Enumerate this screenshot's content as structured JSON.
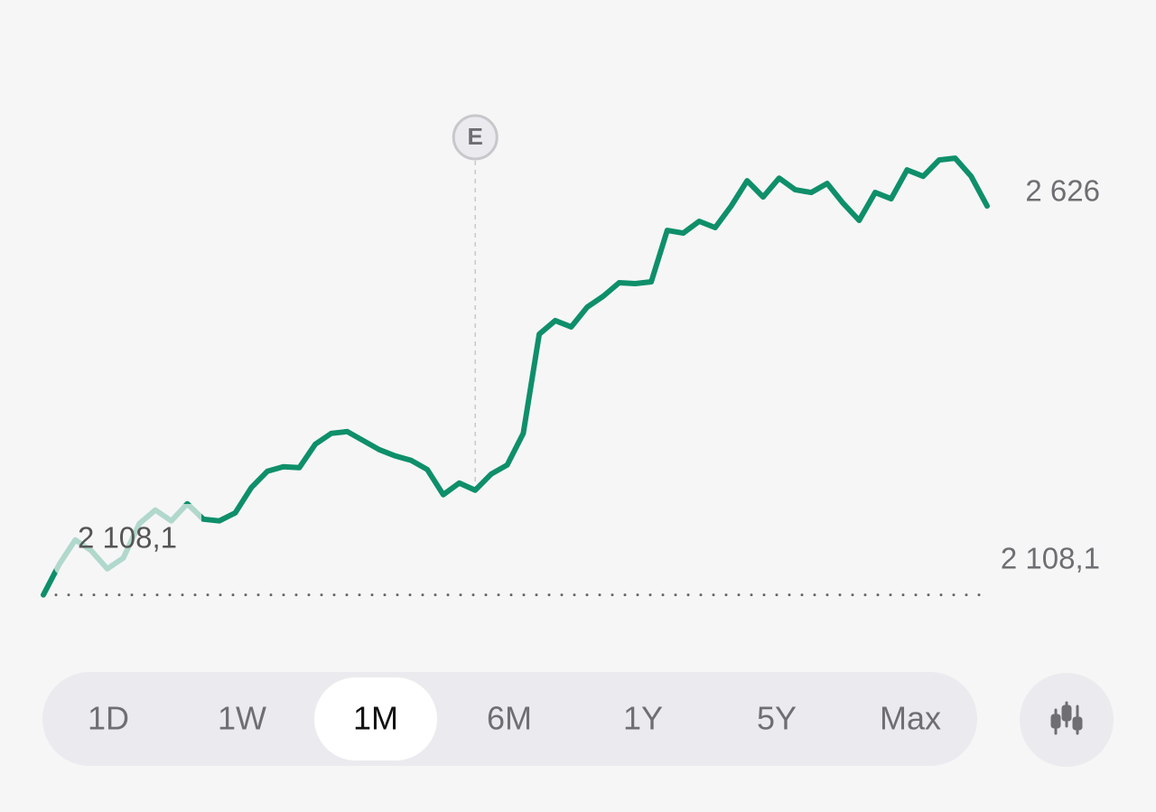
{
  "chart_data": {
    "type": "line",
    "color": "#0e8f6a",
    "values": [
      2108.1,
      2149.0,
      2181.4,
      2167.0,
      2142.9,
      2157.4,
      2203.0,
      2221.1,
      2206.6,
      2229.5,
      2209.0,
      2206.6,
      2217.4,
      2251.1,
      2272.7,
      2278.7,
      2277.5,
      2308.8,
      2323.2,
      2325.6,
      2313.6,
      2301.6,
      2293.1,
      2287.1,
      2275.1,
      2241.5,
      2257.1,
      2247.5,
      2269.1,
      2281.1,
      2323.2,
      2455.4,
      2473.4,
      2465.0,
      2491.4,
      2505.8,
      2523.9,
      2522.7,
      2525.1,
      2593.5,
      2589.9,
      2605.6,
      2597.2,
      2626.0,
      2659.6,
      2638.0,
      2663.2,
      2647.6,
      2644.0,
      2656.0,
      2629.6,
      2606.8,
      2644.0,
      2635.6,
      2674.1,
      2665.6,
      2687.3,
      2689.7,
      2665.6,
      2626.0
    ],
    "last_label": "2 626",
    "reference_value": 2108.1,
    "reference_label": "2 108,1",
    "event_label": "E",
    "ylim": [
      2080,
      2756
    ]
  },
  "tabs": [
    "1D",
    "1W",
    "1M",
    "6M",
    "1Y",
    "5Y",
    "Max"
  ],
  "selected_tab": 2
}
